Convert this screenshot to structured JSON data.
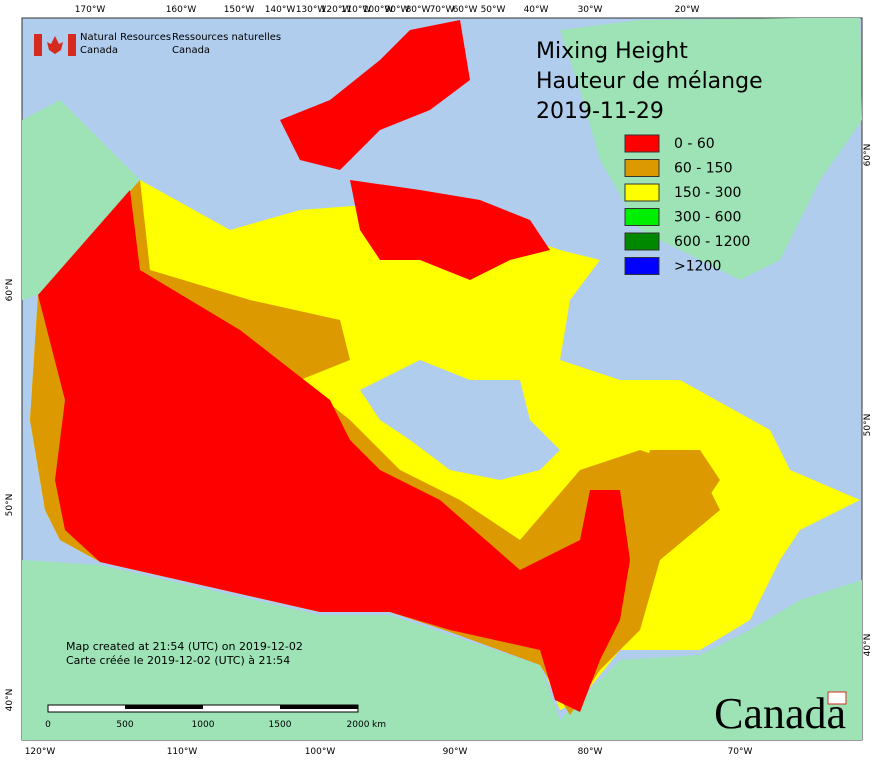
{
  "header": {
    "logo_en": [
      "Natural Resources",
      "Canada"
    ],
    "logo_fr": [
      "Ressources naturelles",
      "Canada"
    ]
  },
  "title": [
    "Mixing Height",
    "Hauteur de mélange",
    "2019-11-29"
  ],
  "legend": [
    {
      "label": "0 - 60",
      "color": "#ff0000"
    },
    {
      "label": "60 - 150",
      "color": "#dd9900"
    },
    {
      "label": "150 - 300",
      "color": "#ffff00"
    },
    {
      "label": "300 - 600",
      "color": "#00ee00"
    },
    {
      "label": "600 - 1200",
      "color": "#008800"
    },
    {
      "label": ">1200",
      "color": "#0000ff"
    }
  ],
  "axes": {
    "top": [
      "170°W",
      "160°W",
      "150°W",
      "140°W",
      "130°W",
      "120°W",
      "110°W",
      "100°W",
      "90°W",
      "80°W",
      "70°W",
      "60°W",
      "50°W",
      "40°W",
      "30°W",
      "20°W"
    ],
    "bottom": [
      "120°W",
      "110°W",
      "100°W",
      "90°W",
      "80°W",
      "70°W"
    ],
    "left": [
      "60°N",
      "50°N",
      "40°N"
    ],
    "right": [
      "60°N",
      "50°N",
      "40°N"
    ]
  },
  "footer": [
    "Map created at 21:54 (UTC) on 2019-12-02",
    "Carte créée le 2019-12-02 (UTC) à 21:54"
  ],
  "scale_bar": {
    "labels": [
      "0",
      "500",
      "1000",
      "1500",
      "2000"
    ],
    "unit": "km"
  },
  "wordmark": "Canada"
}
